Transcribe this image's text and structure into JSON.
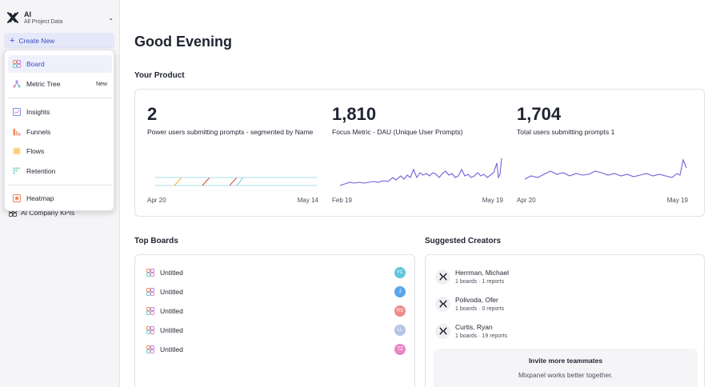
{
  "project": {
    "name": "AI",
    "subtitle": "All Project Data"
  },
  "sidebar": {
    "create_new": "Create New",
    "kpi_item": "AI Company KPIs"
  },
  "dropdown": {
    "items": [
      {
        "label": "Board",
        "badge": ""
      },
      {
        "label": "Metric Tree",
        "badge": "New"
      },
      {
        "label": "Insights",
        "badge": ""
      },
      {
        "label": "Funnels",
        "badge": ""
      },
      {
        "label": "Flows",
        "badge": ""
      },
      {
        "label": "Retention",
        "badge": ""
      },
      {
        "label": "Heatmap",
        "badge": ""
      }
    ]
  },
  "main": {
    "greeting": "Good Evening",
    "your_product_title": "Your Product",
    "metrics": [
      {
        "value": "2",
        "label": "Power users submitting prompts - segmented by Name",
        "date_start": "Apr 20",
        "date_end": "May 14"
      },
      {
        "value": "1,810",
        "label": "Focus Metric - DAU (Unique User Prompts)",
        "date_start": "Feb 19",
        "date_end": "May 19"
      },
      {
        "value": "1,704",
        "label": "Total users submitting prompts 1",
        "date_start": "Apr 20",
        "date_end": "May 19"
      }
    ],
    "top_boards_title": "Top Boards",
    "boards": [
      {
        "name": "Untitled",
        "initials": "YC",
        "color": "#5cc9d8"
      },
      {
        "name": "Untitled",
        "initials": "J",
        "color": "#5aa5ee"
      },
      {
        "name": "Untitled",
        "initials": "RS",
        "color": "#ef8a8a"
      },
      {
        "name": "Untitled",
        "initials": "LL",
        "color": "#b6c2e6"
      },
      {
        "name": "Untitled",
        "initials": "TZ",
        "color": "#ea86c4"
      }
    ],
    "suggested_creators_title": "Suggested Creators",
    "creators": [
      {
        "name": "Herrman, Michael",
        "meta": "1 boards · 1 reports"
      },
      {
        "name": "Polivoda, Ofer",
        "meta": "1 boards · 0 reports"
      },
      {
        "name": "Curtis, Ryan",
        "meta": "1 boards · 19 reports"
      }
    ],
    "invite": {
      "title": "Invite more teammates",
      "subtitle": "Mixpanel works better together."
    }
  },
  "colors": {
    "accent": "#3c4ac1",
    "accent_bg": "#e5e8f8",
    "sparkline": "#6e63d8"
  },
  "icons": {
    "logo": "mixpanel-x-logo",
    "chevron": "chevron-down-icon",
    "plus": "plus-icon",
    "board": "board-icon",
    "metric_tree": "metric-tree-icon",
    "insights": "insights-icon",
    "funnels": "funnels-icon",
    "flows": "flows-icon",
    "retention": "retention-icon",
    "heatmap": "heatmap-icon"
  }
}
